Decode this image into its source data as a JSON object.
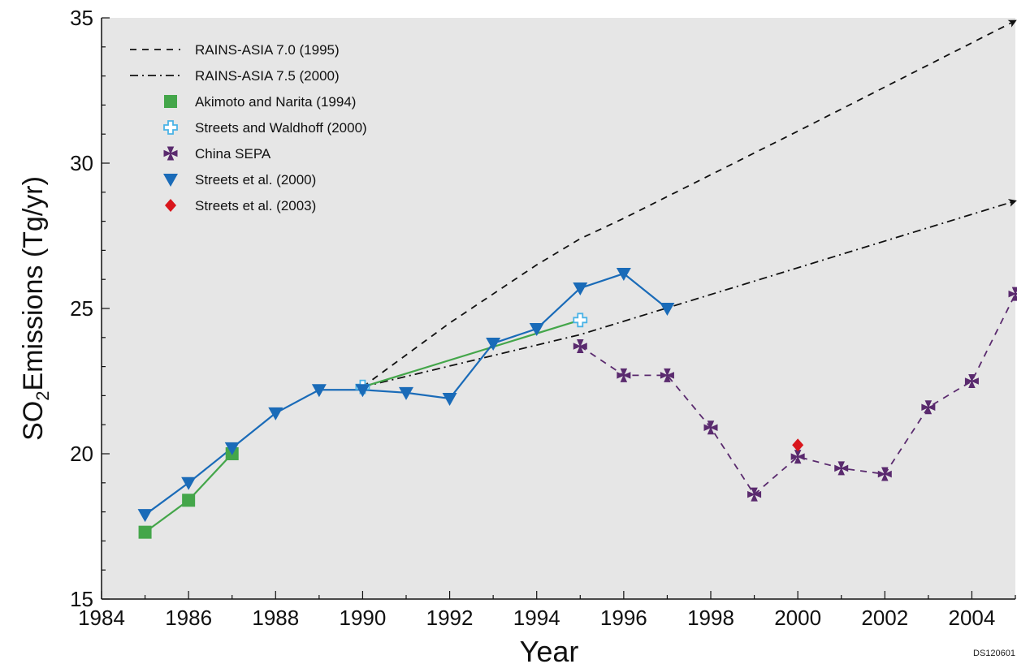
{
  "chart_data": {
    "type": "line",
    "xlabel": "Year",
    "ylabel_main": "SO",
    "ylabel_sub": "2",
    "ylabel_rest": "Emissions (Tg/yr)",
    "xlim": [
      1984,
      2005
    ],
    "ylim": [
      15,
      35
    ],
    "xticks": [
      1984,
      1986,
      1988,
      1990,
      1992,
      1994,
      1996,
      1998,
      2000,
      2002,
      2004
    ],
    "yticks": [
      15,
      20,
      25,
      30,
      35
    ],
    "grid": false,
    "legend_position": "top-left",
    "background": "#e6e6e6",
    "series": [
      {
        "name": "RAINS-ASIA 7.0 (1995)",
        "style": "dashed",
        "color": "#111111",
        "marker": "none",
        "arrow_end": true,
        "x": [
          1990,
          1992,
          1994,
          1995,
          1996,
          2000,
          2005
        ],
        "y": [
          22.3,
          24.5,
          26.5,
          27.4,
          28.1,
          31.1,
          34.9
        ]
      },
      {
        "name": "RAINS-ASIA 7.5 (2000)",
        "style": "dashdot",
        "color": "#111111",
        "marker": "none",
        "arrow_end": true,
        "x": [
          1990,
          1995,
          2000,
          2005
        ],
        "y": [
          22.3,
          24.1,
          26.4,
          28.7
        ]
      },
      {
        "name": "Akimoto and Narita (1994)",
        "style": "solid",
        "color": "#44a64a",
        "marker": "square",
        "x": [
          1985,
          1986,
          1987
        ],
        "y": [
          17.3,
          18.4,
          20.0
        ]
      },
      {
        "name": "Streets and Waldhoff (2000)",
        "style": "solid",
        "color": "#44a64a",
        "marker_color": "#4ab3e6",
        "marker": "cross-open",
        "x": [
          1990,
          1995
        ],
        "y": [
          22.3,
          24.6
        ]
      },
      {
        "name": "China SEPA",
        "style": "dashed",
        "color": "#5a2a6e",
        "marker": "maltese",
        "x": [
          1995,
          1996,
          1997,
          1998,
          1999,
          2000,
          2001,
          2002,
          2003,
          2004,
          2005
        ],
        "y": [
          23.7,
          22.7,
          22.7,
          20.9,
          18.6,
          19.9,
          19.5,
          19.3,
          21.6,
          22.5,
          25.5
        ]
      },
      {
        "name": "Streets et al. (2000)",
        "style": "solid",
        "color": "#1a6bb8",
        "marker": "triangle-down",
        "x": [
          1985,
          1986,
          1987,
          1988,
          1989,
          1990,
          1991,
          1992,
          1993,
          1994,
          1995,
          1996,
          1997
        ],
        "y": [
          17.9,
          19.0,
          20.2,
          21.4,
          22.2,
          22.2,
          22.1,
          21.9,
          23.8,
          24.3,
          25.7,
          26.2,
          25.0
        ]
      },
      {
        "name": "Streets et al. (2003)",
        "style": "none",
        "color": "#d9161c",
        "marker": "diamond",
        "x": [
          2000
        ],
        "y": [
          20.3
        ]
      }
    ],
    "footnote": "DS120601"
  }
}
